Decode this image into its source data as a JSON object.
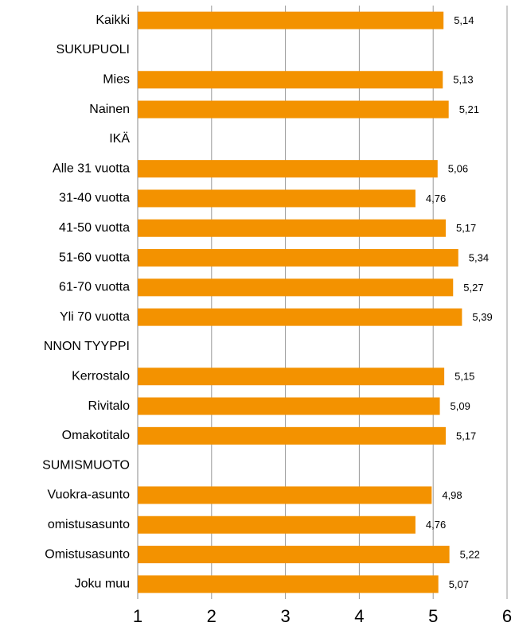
{
  "chart_data": {
    "type": "bar",
    "orientation": "horizontal",
    "categories": [
      "Kaikki",
      "SUKUPUOLI",
      "Mies",
      "Nainen",
      "IKÄ",
      "Alle 31 vuotta",
      "31-40 vuotta",
      "41-50 vuotta",
      "51-60 vuotta",
      "61-70 vuotta",
      "Yli 70 vuotta",
      "NNON TYYPPI",
      "Kerrostalo",
      "Rivitalo",
      "Omakotitalo",
      "SUMISMUOTO",
      "Vuokra-asunto",
      "omistusasunto",
      "Omistusasunto",
      "Joku muu"
    ],
    "values": [
      5.14,
      null,
      5.13,
      5.21,
      null,
      5.06,
      4.76,
      5.17,
      5.34,
      5.27,
      5.39,
      null,
      5.15,
      5.09,
      5.17,
      null,
      4.98,
      4.76,
      5.22,
      5.07
    ],
    "value_labels": [
      "5,14",
      null,
      "5,13",
      "5,21",
      null,
      "5,06",
      "4,76",
      "5,17",
      "5,34",
      "5,27",
      "5,39",
      null,
      "5,15",
      "5,09",
      "5,17",
      null,
      "4,98",
      "4,76",
      "5,22",
      "5,07"
    ],
    "color": "#f39200",
    "xlim": [
      1,
      6
    ],
    "xticks": [
      1,
      2,
      3,
      4,
      5,
      6
    ],
    "grid": true
  }
}
